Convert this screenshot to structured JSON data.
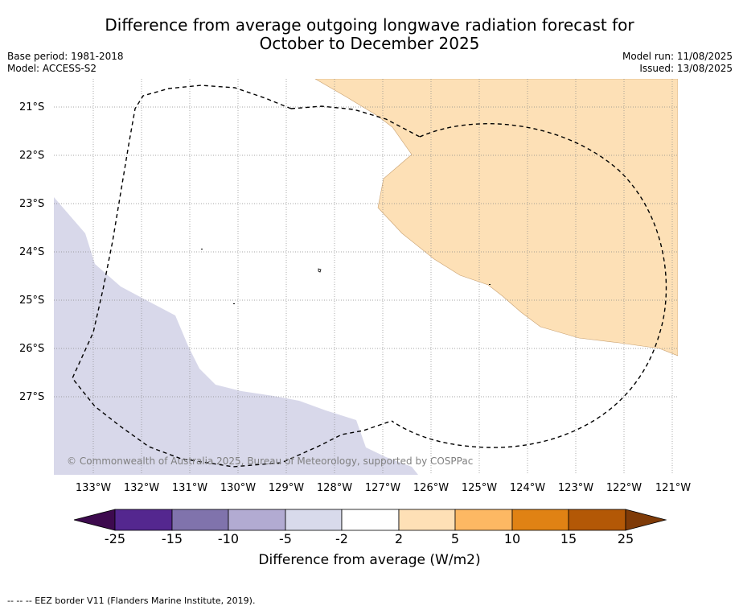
{
  "title_line1": "Difference from average outgoing longwave radiation forecast for",
  "title_line2": "October to December 2025",
  "meta": {
    "base_period": "Base period: 1981-2018",
    "model": "Model: ACCESS-S2",
    "model_run": "Model run: 11/08/2025",
    "issued": "Issued: 13/08/2025"
  },
  "map": {
    "lat_labels": [
      "21°S",
      "22°S",
      "23°S",
      "24°S",
      "25°S",
      "26°S",
      "27°S"
    ],
    "lon_labels": [
      "133°W",
      "132°W",
      "131°W",
      "130°W",
      "129°W",
      "128°W",
      "127°W",
      "126°W",
      "125°W",
      "124°W",
      "123°W",
      "122°W",
      "121°W"
    ],
    "copyright": "© Commonwealth of Australia 2025, Bureau of Meteorology, supported by COSPPac",
    "colors": {
      "positive_2_5": "#fde0b6",
      "negative_2_5": "#d8d8ea"
    }
  },
  "colorbar": {
    "ticks": [
      "-25",
      "-15",
      "-10",
      "-5",
      "-2",
      "2",
      "5",
      "10",
      "15",
      "25"
    ],
    "colors": [
      "#3d0a4e",
      "#54278f",
      "#8073ac",
      "#b2abd2",
      "#d8daeb",
      "#ffffff",
      "#fee0b6",
      "#fdb863",
      "#e08214",
      "#b35806",
      "#7f3b08"
    ],
    "title": "Difference from average (W/m2)"
  },
  "footer": "--  --  -- EEZ border V11 (Flanders Marine Institute, 2019)."
}
